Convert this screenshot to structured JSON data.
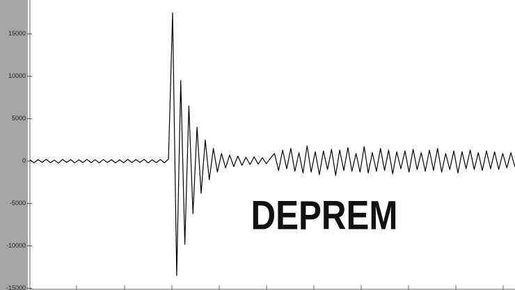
{
  "chart_data": {
    "type": "line",
    "annotation": "DEPREM",
    "color": "#000000",
    "ylim": [
      -15200,
      19000
    ],
    "yticks": [
      15000,
      10000,
      5000,
      0,
      -5000,
      -10000,
      -15000
    ],
    "values": [
      150,
      -200,
      180,
      -150,
      220,
      -180,
      120,
      -250,
      200,
      -150,
      180,
      -220,
      150,
      -170,
      200,
      -180,
      160,
      -210,
      190,
      -160,
      170,
      -200,
      150,
      -190,
      210,
      -170,
      180,
      -150,
      200,
      -220,
      160,
      -180,
      190,
      -200,
      250,
      17500,
      -13500,
      9500,
      -9800,
      6500,
      -6200,
      4000,
      -3800,
      2500,
      -2200,
      1500,
      -1300,
      900,
      -800,
      700,
      -650,
      600,
      -500,
      450,
      -400,
      500,
      -350,
      400,
      -300,
      350,
      900,
      -1100,
      1300,
      -900,
      1500,
      -1200,
      1000,
      -1400,
      1800,
      -1300,
      1100,
      -1600,
      1200,
      -1000,
      1400,
      -1700,
      1300,
      -1100,
      1600,
      -1200,
      900,
      -1300,
      1700,
      -1400,
      1000,
      -1200,
      1500,
      -1100,
      1300,
      -1500,
      1100,
      -900,
      1200,
      -1300,
      1400,
      -1000,
      1000,
      -1200,
      1300,
      -1100,
      1500,
      -1300,
      900,
      -1000,
      1200,
      -1400,
      1100,
      -900,
      1300,
      -1000,
      1000,
      -1100,
      1200,
      -900,
      1100,
      -1000,
      900,
      -800,
      1000,
      -700
    ]
  }
}
